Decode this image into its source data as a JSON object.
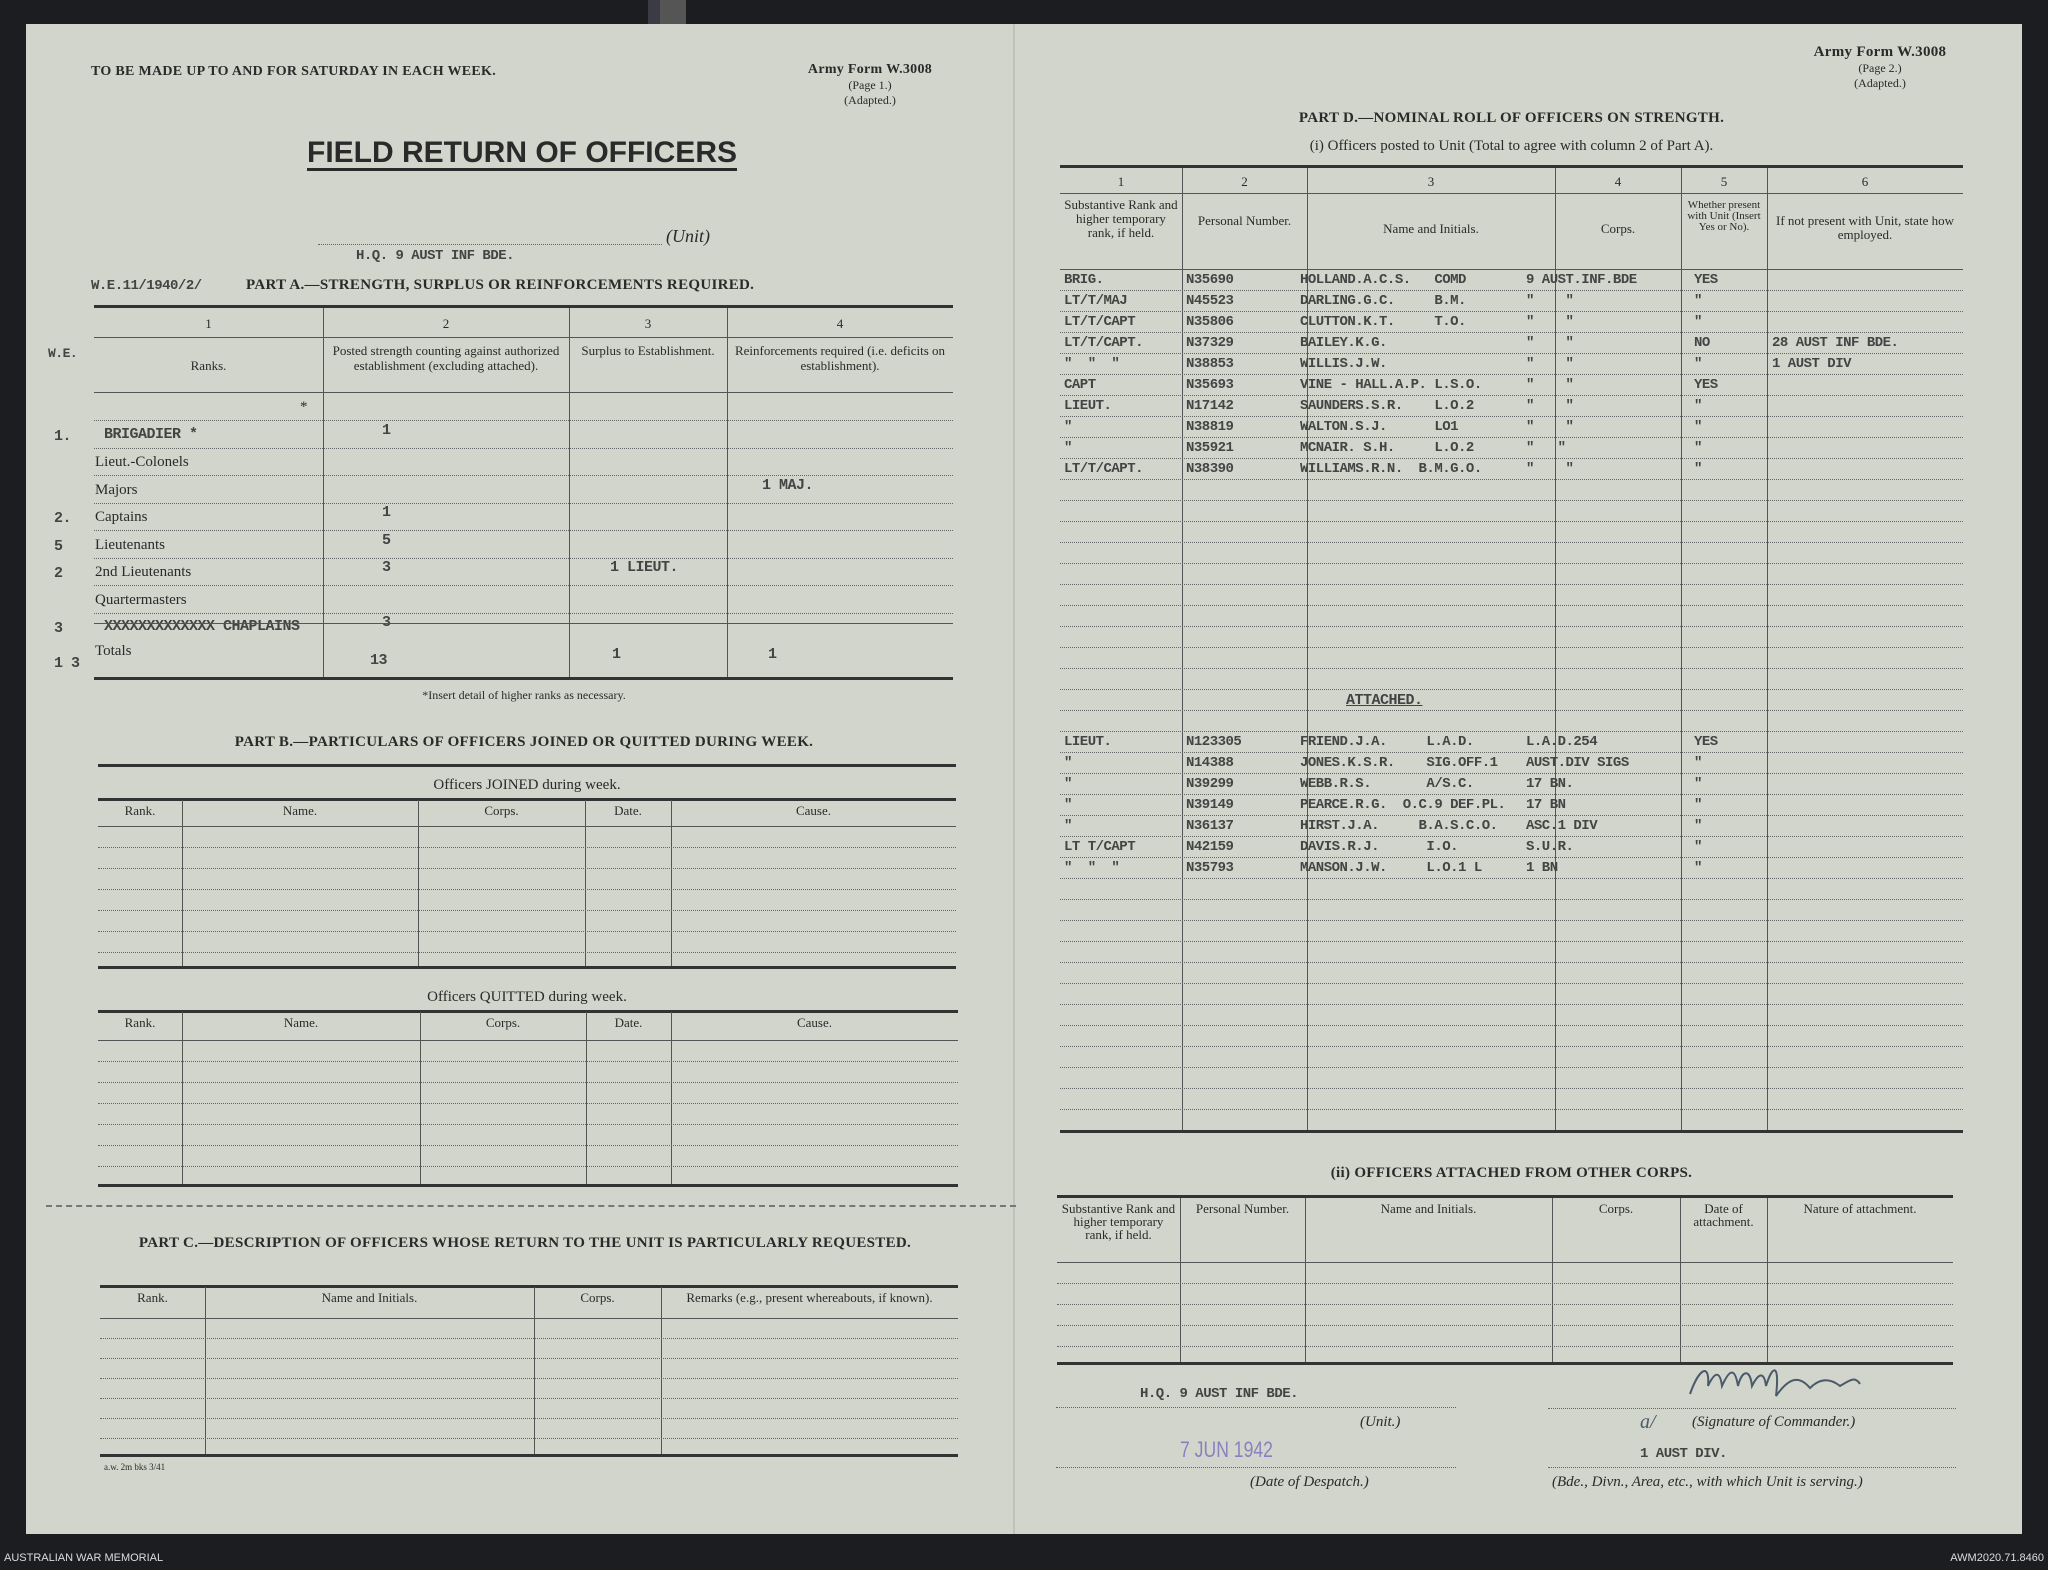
{
  "colors": {
    "paper": "#d2d5cb",
    "typewriter": "#444444",
    "stamp": "#8a7fc0",
    "background": "#1c1d20"
  },
  "page1": {
    "instruction": "TO BE MADE UP TO AND FOR SATURDAY IN EACH WEEK.",
    "form_no": "Army Form W.3008",
    "page": "(Page 1.)",
    "adapted": "(Adapted.)",
    "title": "FIELD RETURN OF OFFICERS",
    "unit_label": "(Unit)",
    "unit_value": "H.Q. 9 AUST INF BDE.",
    "we_ref": "W.E.11/1940/2/",
    "part_a": {
      "heading": "PART A.—STRENGTH, SURPLUS OR REINFORCEMENTS REQUIRED.",
      "col_numbers": [
        "1",
        "2",
        "3",
        "4"
      ],
      "we_label": "W.E.",
      "headers": [
        "Ranks.",
        "Posted strength counting against authorized establishment (excluding attached).",
        "Surplus to Establishment.",
        "Reinforcements required (i.e. deficits on establishment)."
      ],
      "rows": [
        {
          "we": "",
          "rank": "*",
          "c2": "",
          "c3": "",
          "c4": ""
        },
        {
          "we": "1.",
          "rank": "BRIGADIER          *",
          "c2": "1",
          "c3": "",
          "c4": ""
        },
        {
          "we": "",
          "rank": "Lieut.-Colonels",
          "c2": "",
          "c3": "",
          "c4": ""
        },
        {
          "we": "",
          "rank": "Majors",
          "c2": "",
          "c3": "",
          "c4": "1 MAJ."
        },
        {
          "we": "2.",
          "rank": "Captains",
          "c2": "1",
          "c3": "",
          "c4": ""
        },
        {
          "we": "5",
          "rank": "Lieutenants",
          "c2": "5",
          "c3": "",
          "c4": ""
        },
        {
          "we": "2",
          "rank": "2nd Lieutenants",
          "c2": "3",
          "c3": "1 LIEUT.",
          "c4": ""
        },
        {
          "we": "",
          "rank": "Quartermasters",
          "c2": "",
          "c3": "",
          "c4": ""
        },
        {
          "we": "3",
          "rank": "XXXXXXXXXXXXX CHAPLAINS",
          "c2": "3",
          "c3": "",
          "c4": ""
        }
      ],
      "totals_label": "Totals",
      "totals_we": "1 3",
      "totals": {
        "c2": "13",
        "c3": "1",
        "c4": "1"
      },
      "footnote": "*Insert detail of higher ranks as necessary."
    },
    "part_b": {
      "heading": "PART B.—PARTICULARS OF OFFICERS JOINED OR QUITTED DURING WEEK.",
      "joined_title": "Officers JOINED during week.",
      "quitted_title": "Officers QUITTED during week.",
      "headers": [
        "Rank.",
        "Name.",
        "Corps.",
        "Date.",
        "Cause."
      ]
    },
    "part_c": {
      "heading": "PART C.—DESCRIPTION OF OFFICERS WHOSE RETURN TO THE UNIT IS PARTICULARLY REQUESTED.",
      "headers": [
        "Rank.",
        "Name and Initials.",
        "Corps.",
        "Remarks (e.g., present whereabouts, if known)."
      ]
    },
    "print_code": "a.w. 2m bks 3/41"
  },
  "page2": {
    "form_no": "Army Form W.3008",
    "page": "(Page 2.)",
    "adapted": "(Adapted.)",
    "part_d": {
      "heading": "PART D.—NOMINAL ROLL OF OFFICERS ON STRENGTH.",
      "sub_i": "(i) Officers posted to Unit (Total to agree with column 2 of Part A).",
      "col_numbers": [
        "1",
        "2",
        "3",
        "4",
        "5",
        "6"
      ],
      "headers": [
        "Substantive Rank and higher temporary rank, if held.",
        "Personal Number.",
        "Name and Initials.",
        "Corps.",
        "Whether present with Unit (Insert Yes or No).",
        "If not present with Unit, state how employed."
      ],
      "rows": [
        [
          "BRIG.",
          "N35690",
          "HOLLAND.A.C.S.   COMD",
          "9 AUST.INF.BDE",
          "YES",
          ""
        ],
        [
          "LT/T/MAJ",
          "N45523",
          "DARLING.G.C.     B.M.",
          "\"    \"",
          "\"",
          ""
        ],
        [
          "LT/T/CAPT",
          "N35806",
          "CLUTTON.K.T.     T.O.",
          "\"    \"",
          "\"",
          ""
        ],
        [
          "LT/T/CAPT.",
          "N37329",
          "BAILEY.K.G.",
          "\"    \"",
          "NO",
          "28 AUST INF BDE."
        ],
        [
          "\"  \"  \"",
          "N38853",
          "WILLIS.J.W.",
          "\"    \"",
          "\"",
          "1 AUST DIV"
        ],
        [
          "CAPT",
          "N35693",
          "VINE - HALL.A.P. L.S.O.",
          "\"    \"",
          "YES",
          ""
        ],
        [
          "LIEUT.",
          "N17142",
          "SAUNDERS.S.R.    L.O.2",
          "\"    \"",
          "\"",
          ""
        ],
        [
          "\"",
          "N38819",
          "WALTON.S.J.      LO1",
          "\"    \"",
          "\"",
          ""
        ],
        [
          "\"",
          "N35921",
          "MCNAIR. S.H.     L.O.2",
          "\"   \"",
          "\"",
          ""
        ],
        [
          "LT/T/CAPT.",
          "N38390",
          "WILLIAMS.R.N.  B.M.G.O.",
          "\"    \"",
          "\"",
          ""
        ]
      ],
      "attached_label": "ATTACHED.",
      "attached_rows": [
        [
          "LIEUT.",
          "N123305",
          "FRIEND.J.A.     L.A.D.",
          "L.A.D.254",
          "YES",
          ""
        ],
        [
          "\"",
          "N14388",
          "JONES.K.S.R.    SIG.OFF.1",
          "AUST.DIV SIGS",
          "\"",
          ""
        ],
        [
          "\"",
          "N39299",
          "WEBB.R.S.       A/S.C.",
          "17 BN.",
          "\"",
          ""
        ],
        [
          "\"",
          "N39149",
          "PEARCE.R.G.  O.C.9 DEF.PL.",
          "17 BN",
          "\"",
          ""
        ],
        [
          "\"",
          "N36137",
          "HIRST.J.A.     B.A.S.C.O.",
          "ASC.1 DIV",
          "\"",
          ""
        ],
        [
          "LT T/CAPT",
          "N42159",
          "DAVIS.R.J.      I.O.",
          "S.U.R.",
          "\"",
          ""
        ],
        [
          "\"  \"  \"",
          "N35793",
          "MANSON.J.W.     L.O.1 L",
          "1 BN",
          "\"",
          ""
        ]
      ]
    },
    "part_d_ii": {
      "heading": "(ii) OFFICERS ATTACHED FROM OTHER CORPS.",
      "headers": [
        "Substantive Rank and higher temporary rank, if held.",
        "Personal Number.",
        "Name and Initials.",
        "Corps.",
        "Date of attachment.",
        "Nature of attachment."
      ]
    },
    "footer": {
      "unit_value": "H.Q. 9 AUST INF BDE.",
      "unit_label": "(Unit.)",
      "date_value": "7 JUN 1942",
      "date_label": "(Date of Despatch.)",
      "signature_prefix": "a/",
      "signature_label": "(Signature of Commander.)",
      "serving_value": "1 AUST DIV.",
      "serving_label": "(Bde., Divn., Area, etc., with which Unit is serving.)"
    }
  },
  "archive": {
    "left": "AUSTRALIAN WAR MEMORIAL",
    "right": "AWM2020.71.8460"
  }
}
